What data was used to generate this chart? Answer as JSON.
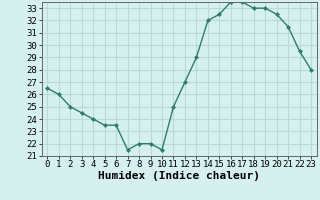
{
  "x": [
    0,
    1,
    2,
    3,
    4,
    5,
    6,
    7,
    8,
    9,
    10,
    11,
    12,
    13,
    14,
    15,
    16,
    17,
    18,
    19,
    20,
    21,
    22,
    23
  ],
  "y": [
    26.5,
    26,
    25,
    24.5,
    24,
    23.5,
    23.5,
    21.5,
    22,
    22,
    21.5,
    25,
    27,
    29,
    32,
    32.5,
    33.5,
    33.5,
    33,
    33,
    32.5,
    31.5,
    29.5,
    28
  ],
  "line_color": "#2e7d6e",
  "marker": "D",
  "marker_size": 2.0,
  "bg_color": "#d6f0f0",
  "grid_color": "#b8dada",
  "xlabel": "Humidex (Indice chaleur)",
  "tick_fontsize": 6.5,
  "ylim": [
    21,
    33.5
  ],
  "xlim": [
    -0.5,
    23.5
  ],
  "yticks": [
    21,
    22,
    23,
    24,
    25,
    26,
    27,
    28,
    29,
    30,
    31,
    32,
    33
  ],
  "xticks": [
    0,
    1,
    2,
    3,
    4,
    5,
    6,
    7,
    8,
    9,
    10,
    11,
    12,
    13,
    14,
    15,
    16,
    17,
    18,
    19,
    20,
    21,
    22,
    23
  ]
}
